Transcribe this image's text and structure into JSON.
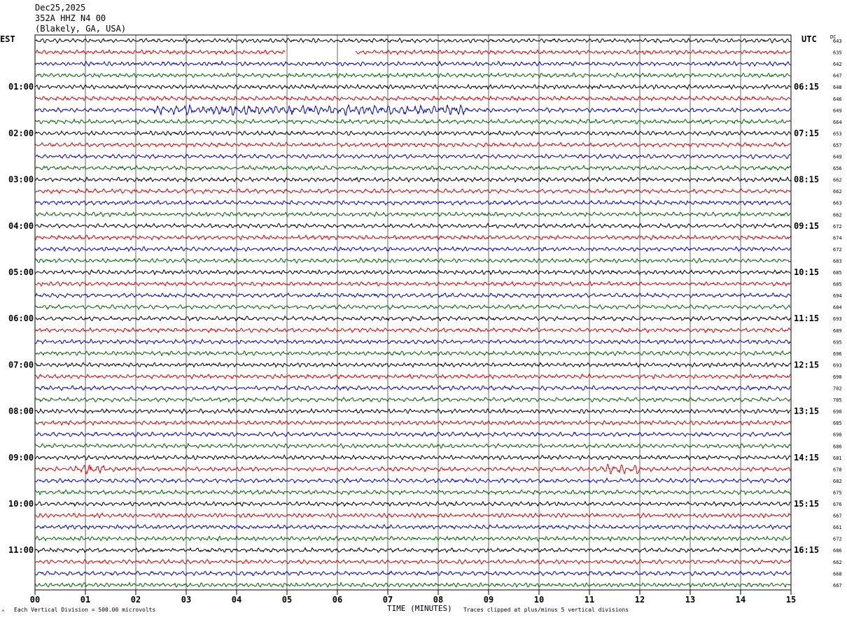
{
  "header": {
    "date": "Dec25,2025",
    "station": "352A HHZ N4 00",
    "location": "(Blakely, GA, USA)"
  },
  "labels": {
    "left_tz": "EST",
    "right_tz": "UTC",
    "dc_label": "DC"
  },
  "footer": {
    "scale_note": "Each Vertical Division =  500.00 microvolts",
    "xlabel": "TIME (MINUTES)",
    "clip_note": "Traces clipped at plus/minus 5 vertical divisions",
    "corner_mark": "⌃"
  },
  "chart_data": {
    "type": "line",
    "title": "352A HHZ N4 00",
    "xlabel": "TIME (MINUTES)",
    "xlim": [
      0,
      15
    ],
    "x_ticks": [
      "00",
      "01",
      "02",
      "03",
      "04",
      "05",
      "06",
      "07",
      "08",
      "09",
      "10",
      "11",
      "12",
      "13",
      "14",
      "15"
    ],
    "rows_per_hour": 4,
    "trace_colors": [
      "#000000",
      "#dd0000",
      "#0000cc",
      "#006400"
    ],
    "left_hour_labels": [
      "01:00",
      "02:00",
      "03:00",
      "04:00",
      "05:00",
      "06:00",
      "07:00",
      "08:00",
      "09:00",
      "10:00",
      "11:00"
    ],
    "right_hour_labels": [
      "06:15",
      "07:15",
      "08:15",
      "09:15",
      "10:15",
      "11:15",
      "12:15",
      "13:15",
      "14:15",
      "15:15",
      "16:15"
    ],
    "dc_offsets": [
      643,
      635,
      642,
      647,
      648,
      646,
      649,
      664,
      653,
      657,
      649,
      656,
      662,
      662,
      663,
      662,
      672,
      674,
      672,
      683,
      685,
      685,
      694,
      684,
      693,
      689,
      695,
      696,
      693,
      690,
      702,
      705,
      690,
      685,
      690,
      686,
      681,
      678,
      682,
      675,
      676,
      667,
      661,
      672,
      686,
      662,
      668,
      667
    ],
    "events": [
      {
        "row": 1,
        "gap_start_min": 4.95,
        "gap_end_min": 6.35
      },
      {
        "row": 6,
        "burst_start_min": 2.3,
        "burst_end_min": 8.6
      },
      {
        "row": 37,
        "burst_start_min": 0.8,
        "burst_end_min": 1.4
      },
      {
        "row": 37,
        "burst_start_min": 11.2,
        "burst_end_min": 12.1
      }
    ]
  }
}
